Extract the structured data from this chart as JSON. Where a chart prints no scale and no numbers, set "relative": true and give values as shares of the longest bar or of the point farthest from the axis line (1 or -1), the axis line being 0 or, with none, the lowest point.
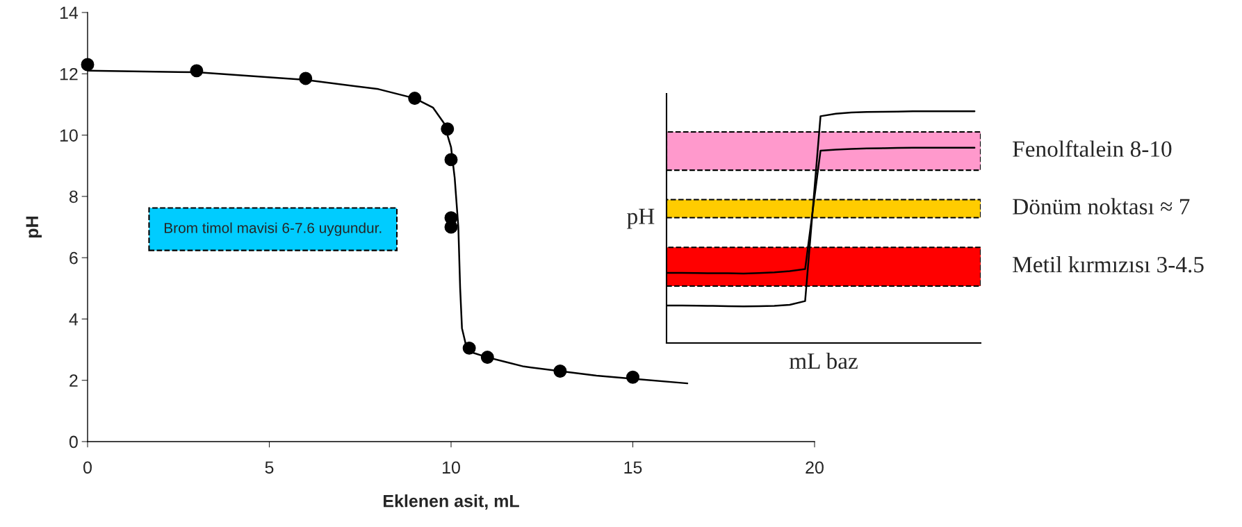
{
  "chart_data": [
    {
      "type": "scatter",
      "xlabel": "Eklenen asit, mL",
      "ylabel": "pH",
      "xlim": [
        0,
        20
      ],
      "ylim": [
        0,
        14
      ],
      "xticks": [
        0,
        5,
        10,
        15,
        20
      ],
      "yticks": [
        0,
        2,
        4,
        6,
        8,
        10,
        12,
        14
      ],
      "grid": false,
      "legend": false,
      "marker": "circle",
      "annotations": [
        "Brom timol mavisi 6-7.6 uygundur."
      ],
      "series": [
        {
          "type": "scatter",
          "color": "#000000",
          "x": [
            0,
            3,
            6,
            9,
            9.9,
            10,
            10,
            10,
            10.5,
            11,
            13,
            15
          ],
          "values": [
            12.3,
            12.1,
            11.85,
            11.2,
            10.2,
            9.2,
            7.3,
            7.0,
            3.05,
            2.75,
            2.3,
            2.1
          ]
        },
        {
          "type": "line",
          "color": "#000000",
          "marker": "none",
          "line_style": "solid",
          "x": [
            0,
            3,
            6,
            8,
            9,
            9.5,
            9.8,
            10.0,
            10.1,
            10.2,
            10.25,
            10.3,
            10.4,
            10.6,
            11,
            11.5,
            12,
            13,
            14,
            15,
            16.5
          ],
          "values": [
            12.1,
            12.05,
            11.8,
            11.5,
            11.2,
            10.9,
            10.4,
            9.6,
            8.6,
            7.0,
            5.0,
            3.7,
            3.2,
            2.9,
            2.75,
            2.6,
            2.45,
            2.3,
            2.15,
            2.05,
            1.9
          ]
        }
      ]
    },
    {
      "type": "line",
      "relative": true,
      "xlabel": "mL baz",
      "ylabel": "pH",
      "grid": false,
      "legend": false,
      "categories": [
        null,
        null,
        null,
        null,
        null,
        null,
        null,
        null,
        null,
        null,
        null,
        null,
        null,
        null,
        null,
        null,
        null,
        null,
        null,
        null,
        null
      ],
      "bands": [
        {
          "axis": "y",
          "from": 0.746,
          "to": 0.911,
          "label": "Fenolftalein 8-10",
          "color": "#ff99cc"
        },
        {
          "axis": "y",
          "from": 0.541,
          "to": 0.619,
          "label": "Dönüm noktası ≈ 7",
          "color": "#ffcc00"
        },
        {
          "axis": "y",
          "from": 0.246,
          "to": 0.413,
          "label": "Metil kırmızısı 3-4.5",
          "color": "#ff0000"
        }
      ],
      "series": [
        {
          "color": "#000000",
          "values": [
            0.162,
            0.162,
            0.161,
            0.16,
            0.159,
            0.158,
            0.159,
            0.16,
            0.165,
            0.181,
            0.979,
            0.99,
            0.995,
            0.997,
            0.998,
            0.999,
            1.0,
            1.0,
            1.0,
            1.0,
            1.0
          ]
        },
        {
          "color": "#000000",
          "values": [
            0.303,
            0.303,
            0.302,
            0.301,
            0.301,
            0.3,
            0.302,
            0.305,
            0.31,
            0.319,
            0.83,
            0.835,
            0.838,
            0.84,
            0.841,
            0.842,
            0.843,
            0.843,
            0.843,
            0.843,
            0.843
          ]
        }
      ]
    }
  ]
}
